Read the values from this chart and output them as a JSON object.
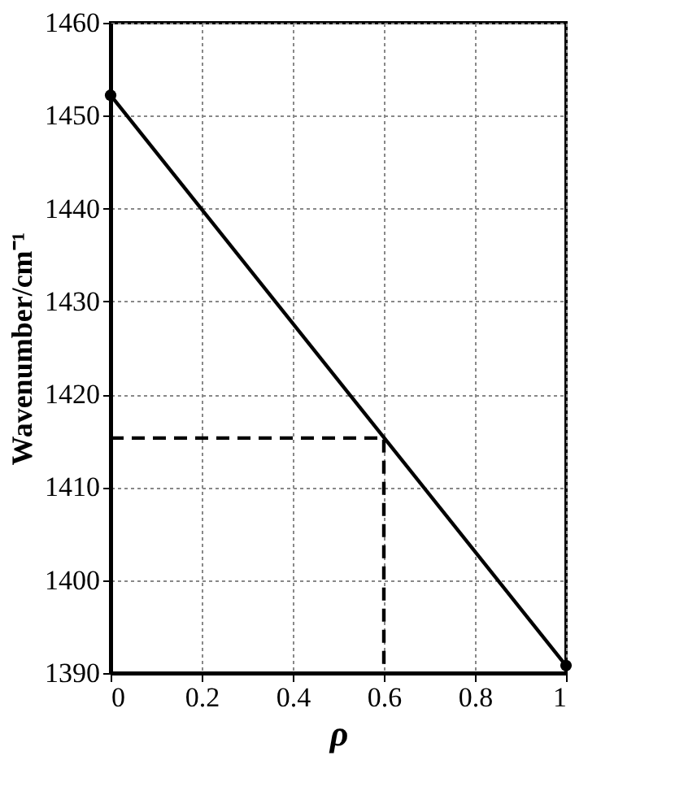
{
  "chart_data": {
    "type": "line",
    "xlabel": "ρ",
    "ylabel": "Wavenumber/cm⁻¹",
    "xlim": [
      0,
      1
    ],
    "ylim": [
      1390,
      1460
    ],
    "xticks": [
      0,
      0.2,
      0.4,
      0.6,
      0.8,
      1
    ],
    "yticks": [
      1390,
      1400,
      1410,
      1420,
      1430,
      1440,
      1450,
      1460
    ],
    "grid": true,
    "series": [
      {
        "x": [
          0,
          1
        ],
        "values": [
          1452.2,
          1390.8
        ],
        "color": "#000000",
        "marker": "circle",
        "line_style": "solid"
      },
      {
        "x": [
          0,
          0.6,
          0.6
        ],
        "values": [
          1415.3,
          1415.3,
          1390
        ],
        "color": "#000000",
        "marker": "none",
        "line_style": "dashed"
      }
    ]
  }
}
